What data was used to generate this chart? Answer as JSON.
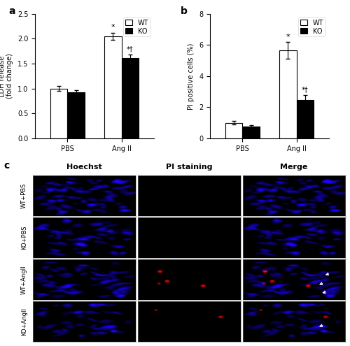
{
  "panel_a": {
    "groups": [
      "PBS",
      "Ang II"
    ],
    "wt_values": [
      1.0,
      2.05
    ],
    "ko_values": [
      0.93,
      1.62
    ],
    "wt_errors": [
      0.05,
      0.07
    ],
    "ko_errors": [
      0.04,
      0.06
    ],
    "ylabel": "LDH release\n(fold change)",
    "ylim": [
      0,
      2.5
    ],
    "yticks": [
      0.0,
      0.5,
      1.0,
      1.5,
      2.0,
      2.5
    ],
    "sig_wt": "*",
    "sig_ko": "*†",
    "bar_width": 0.32,
    "wt_color": "white",
    "ko_color": "black",
    "edge_color": "black"
  },
  "panel_b": {
    "groups": [
      "PBS",
      "Ang II"
    ],
    "wt_values": [
      1.0,
      5.65
    ],
    "ko_values": [
      0.78,
      2.45
    ],
    "wt_errors": [
      0.12,
      0.55
    ],
    "ko_errors": [
      0.08,
      0.35
    ],
    "ylabel": "PI positive cells (%)",
    "ylim": [
      0,
      8
    ],
    "yticks": [
      0,
      2,
      4,
      6,
      8
    ],
    "sig_wt": "*",
    "sig_ko": "*†",
    "bar_width": 0.32,
    "wt_color": "white",
    "ko_color": "black",
    "edge_color": "black"
  },
  "panel_a_label": "a",
  "panel_b_label": "b",
  "panel_c_label": "c",
  "col_labels": [
    "Hoechst",
    "PI staining",
    "Merge"
  ],
  "row_labels": [
    "WT+PBS",
    "KO+PBS",
    "WT+AngII",
    "KO+AngII"
  ],
  "figure_bg": "white",
  "font_size": 7,
  "label_fontsize": 10
}
